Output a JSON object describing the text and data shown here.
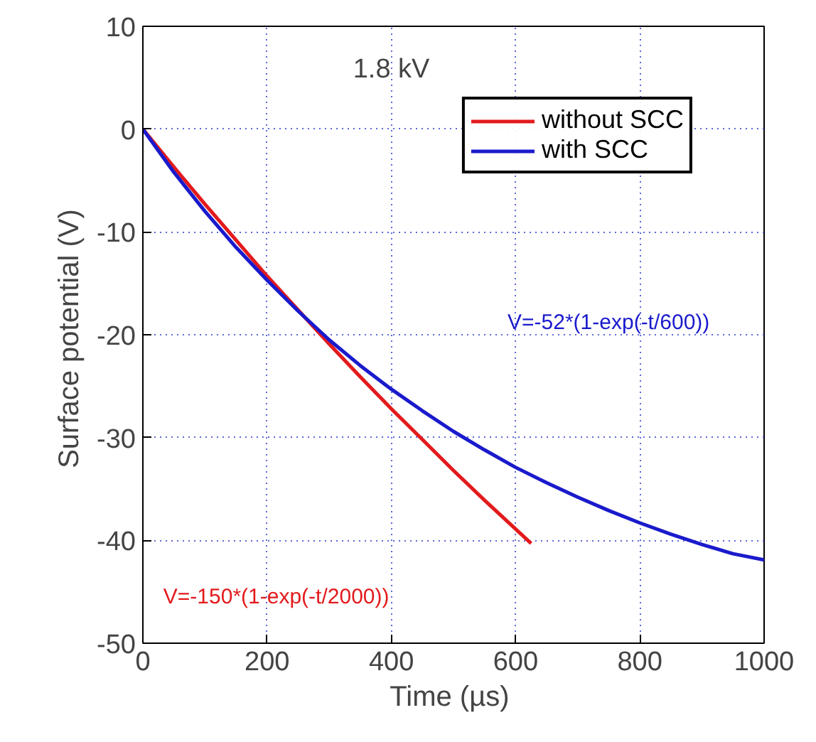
{
  "chart_data": {
    "type": "line",
    "xlabel": "Time  (µs)",
    "ylabel": "Surface potential  (V)",
    "xlim": [
      0,
      1000
    ],
    "xticks": [
      0,
      200,
      400,
      600,
      800,
      1000
    ],
    "ylim": [
      -50,
      10
    ],
    "yticks": [
      -50,
      -40,
      -30,
      -20,
      -10,
      0,
      10
    ],
    "grid": true,
    "legend": "top right",
    "line_style": "solid",
    "series": [
      {
        "name": "without SCC",
        "color": "#e31a1c",
        "x": [
          0,
          50,
          100,
          150,
          200,
          250,
          300,
          350,
          400,
          450,
          500,
          550,
          600,
          625
        ],
        "values": [
          0,
          -3.7,
          -7.3,
          -10.8,
          -14.3,
          -17.6,
          -20.9,
          -24.1,
          -27.2,
          -30.2,
          -33.2,
          -36.1,
          -38.9,
          -40.3
        ]
      },
      {
        "name": "with SCC",
        "color": "#1a1acc",
        "x": [
          0,
          50,
          100,
          150,
          200,
          250,
          300,
          350,
          400,
          450,
          500,
          550,
          600,
          650,
          700,
          750,
          800,
          850,
          900,
          950,
          1000
        ],
        "values": [
          0,
          -4.2,
          -8.0,
          -11.5,
          -14.7,
          -17.7,
          -20.5,
          -23.0,
          -25.3,
          -27.4,
          -29.4,
          -31.2,
          -32.9,
          -34.4,
          -35.8,
          -37.1,
          -38.3,
          -39.4,
          -40.4,
          -41.3,
          -41.9
        ]
      }
    ],
    "annotations": [
      "1.8 kV",
      "V=-52*(1-exp(-t/600))",
      "V=-150*(1-exp(-t/2000))"
    ]
  }
}
